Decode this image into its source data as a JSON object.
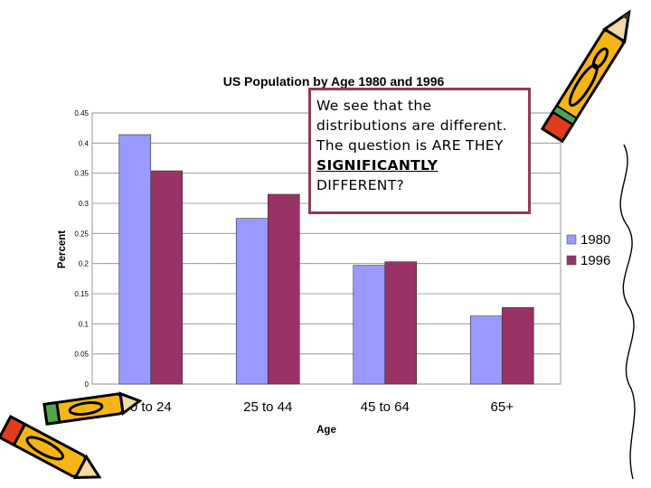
{
  "chart_data": {
    "type": "bar",
    "title": "US Population by Age 1980 and 1996",
    "xlabel": "Age",
    "ylabel": "Percent",
    "categories": [
      "0 to 24",
      "25 to 44",
      "45 to 64",
      "65+"
    ],
    "series": [
      {
        "name": "1980",
        "values": [
          0.414,
          0.275,
          0.197,
          0.113
        ],
        "color": "#9999ff"
      },
      {
        "name": "1996",
        "values": [
          0.354,
          0.315,
          0.203,
          0.127
        ],
        "color": "#993366"
      }
    ],
    "ylim": [
      0,
      0.45
    ],
    "yticks": [
      "0",
      "0.05",
      "0.1",
      "0.15",
      "0.2",
      "0.25",
      "0.3",
      "0.35",
      "0.4",
      "0.45"
    ],
    "grid": true,
    "legend_position": "right"
  },
  "callout": {
    "line1": "We see that the",
    "line2": "distributions are different.",
    "line3": "The question is ARE THEY",
    "emphasis": "SIGNIFICANTLY",
    "line4": "DIFFERENT?",
    "border_color": "#8e3b5c"
  },
  "decorations": {
    "top_right": "pencil-clipart",
    "bottom_left": "pencils-clipart"
  }
}
